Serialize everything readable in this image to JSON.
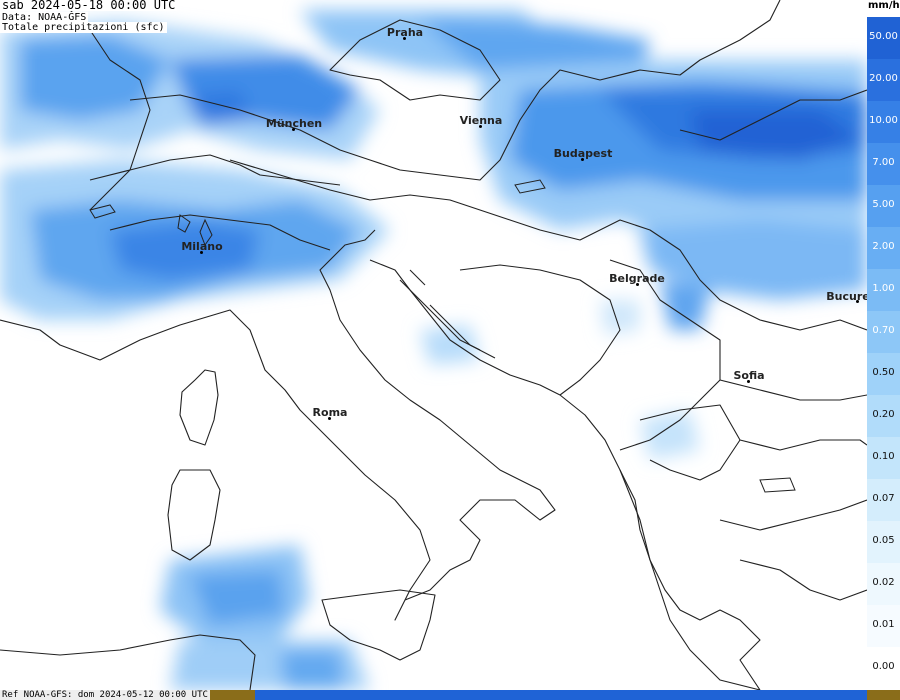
{
  "header": {
    "time": "sab 2024-05-18 00:00 UTC",
    "source": "Data: NOAA-GFS",
    "variable": "Totale precipitazioni (sfc)"
  },
  "footer": {
    "reference": "Ref NOAA-GFS: dom 2024-05-12 00:00 UTC"
  },
  "legend": {
    "unit": "mm/h",
    "levels": [
      {
        "value": "50.00",
        "color": "#2062d4"
      },
      {
        "value": "20.00",
        "color": "#2a70de"
      },
      {
        "value": "10.00",
        "color": "#3680e6"
      },
      {
        "value": "7.00",
        "color": "#4590ec"
      },
      {
        "value": "5.00",
        "color": "#56a0f0"
      },
      {
        "value": "2.00",
        "color": "#68aef3"
      },
      {
        "value": "1.00",
        "color": "#7bbbf5"
      },
      {
        "value": "0.70",
        "color": "#8dc7f7"
      },
      {
        "value": "0.50",
        "color": "#9fd2f9"
      },
      {
        "value": "0.20",
        "color": "#b1dcfa"
      },
      {
        "value": "0.10",
        "color": "#c3e5fb"
      },
      {
        "value": "0.07",
        "color": "#d4edfc"
      },
      {
        "value": "0.05",
        "color": "#e2f3fd"
      },
      {
        "value": "0.02",
        "color": "#eef8fe"
      },
      {
        "value": "0.01",
        "color": "#f6fbff"
      },
      {
        "value": "0.00",
        "color": "#ffffff"
      }
    ]
  },
  "cities": [
    {
      "name": "Praha"
    },
    {
      "name": "München"
    },
    {
      "name": "Vienna"
    },
    {
      "name": "Budapest"
    },
    {
      "name": "Milano"
    },
    {
      "name": "Belgrade"
    },
    {
      "name": "Bucure"
    },
    {
      "name": "Sofia"
    },
    {
      "name": "Roma"
    }
  ]
}
